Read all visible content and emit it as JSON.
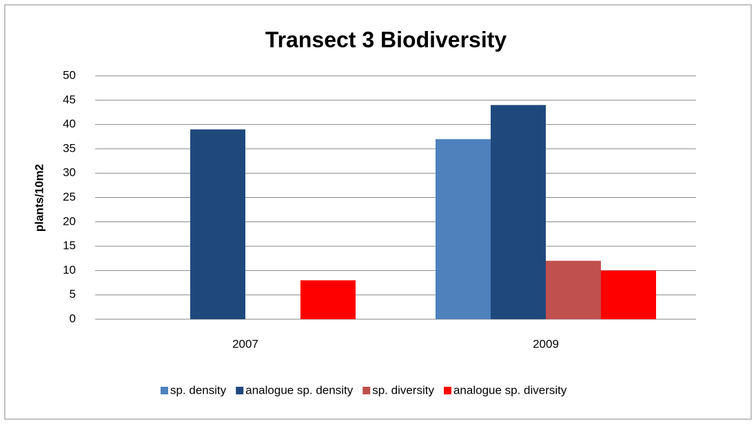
{
  "chart_data": {
    "type": "bar",
    "title": "Transect 3 Biodiversity",
    "y_label": "plants/10m2",
    "categories": [
      "2007",
      "2009"
    ],
    "series": [
      {
        "name": "sp. density",
        "color": "#4f81bd",
        "values": [
          0,
          37
        ]
      },
      {
        "name": "analogue sp. density",
        "color": "#1f497d",
        "values": [
          39,
          44
        ]
      },
      {
        "name": "sp. diversity",
        "color": "#c0504d",
        "values": [
          0,
          12
        ]
      },
      {
        "name": "analogue sp. diversity",
        "color": "#ff0000",
        "values": [
          8,
          10
        ]
      }
    ],
    "ylim": [
      0,
      50
    ],
    "yticks": [
      0,
      5,
      10,
      15,
      20,
      25,
      30,
      35,
      40,
      45,
      50
    ],
    "grid": true,
    "legend": "bottom"
  }
}
